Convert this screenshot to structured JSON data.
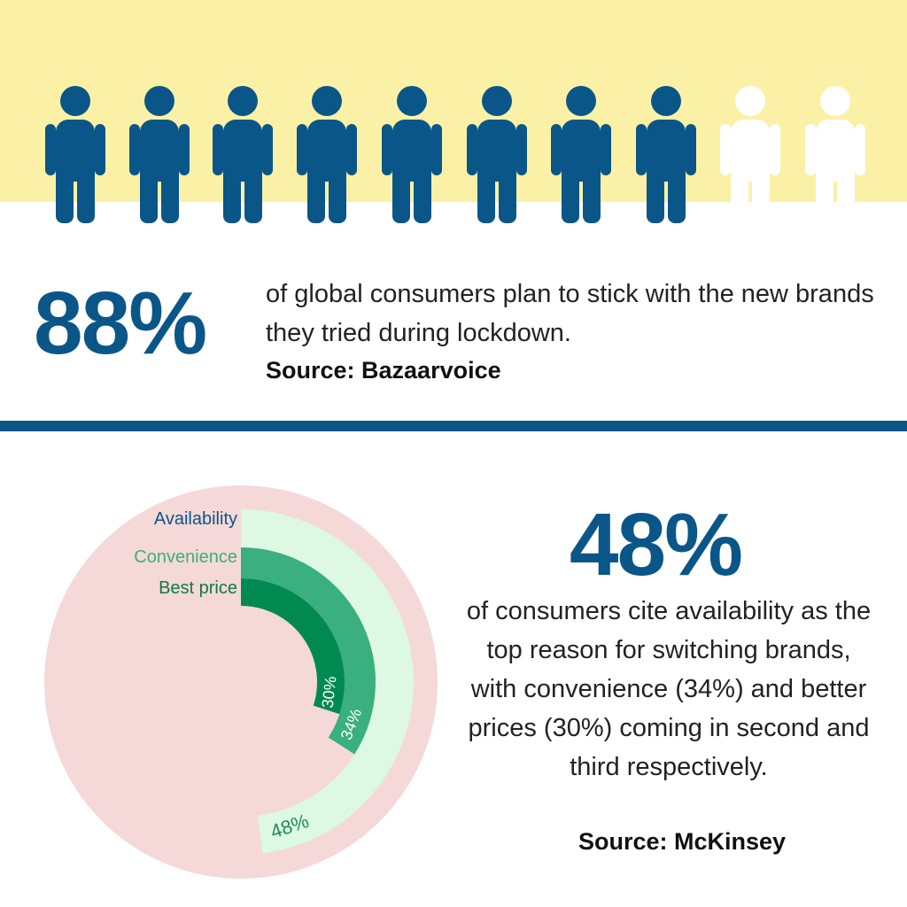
{
  "stat1": {
    "headline": "88%",
    "text": "of global consumers plan to stick with the new brands they tried during lockdown.",
    "source": "Source: Bazaarvoice"
  },
  "stat2": {
    "headline": "48%",
    "text": "of consumers cite availability as the top reason for switching brands, with convenience (34%) and better prices (30%) coming in second and third respectively.",
    "source": "Source: McKinsey"
  },
  "chart_data": {
    "type": "radial_bar",
    "categories": [
      "Availability",
      "Convenience",
      "Best price"
    ],
    "values": [
      48,
      34,
      30
    ],
    "value_labels": [
      "48%",
      "34%",
      "30%"
    ],
    "colors": [
      "#ddf8e3",
      "#3aaf80",
      "#008a52"
    ],
    "label_colors": [
      "#0b5689",
      "#3aaf80",
      "#0d7a4a"
    ],
    "xlim": [
      0,
      100
    ]
  }
}
